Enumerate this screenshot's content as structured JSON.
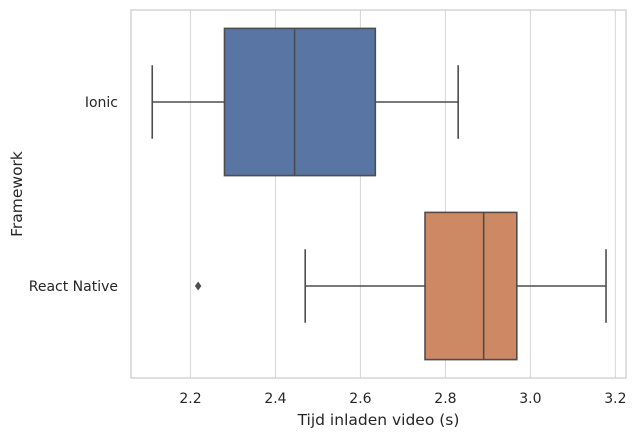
{
  "chart_data": {
    "type": "boxplot",
    "orientation": "horizontal",
    "xlabel": "Tijd inladen video (s)",
    "ylabel": "Framework",
    "xlim": [
      2.06,
      3.225
    ],
    "x_ticks": [
      2.2,
      2.4,
      2.6,
      2.8,
      3.0,
      3.2
    ],
    "x_tick_labels": [
      "2.2",
      "2.4",
      "2.6",
      "2.8",
      "3.0",
      "3.2"
    ],
    "grid": "vertical",
    "categories": [
      "Ionic",
      "React Native"
    ],
    "series": [
      {
        "category": "Ionic",
        "color": "#5875a4",
        "whisker_low": 2.11,
        "q1": 2.28,
        "median": 2.445,
        "q3": 2.635,
        "whisker_high": 2.83,
        "outliers": []
      },
      {
        "category": "React Native",
        "color": "#cc8963",
        "whisker_low": 2.47,
        "q1": 2.752,
        "median": 2.89,
        "q3": 2.968,
        "whisker_high": 3.178,
        "outliers": [
          2.218
        ]
      }
    ]
  }
}
